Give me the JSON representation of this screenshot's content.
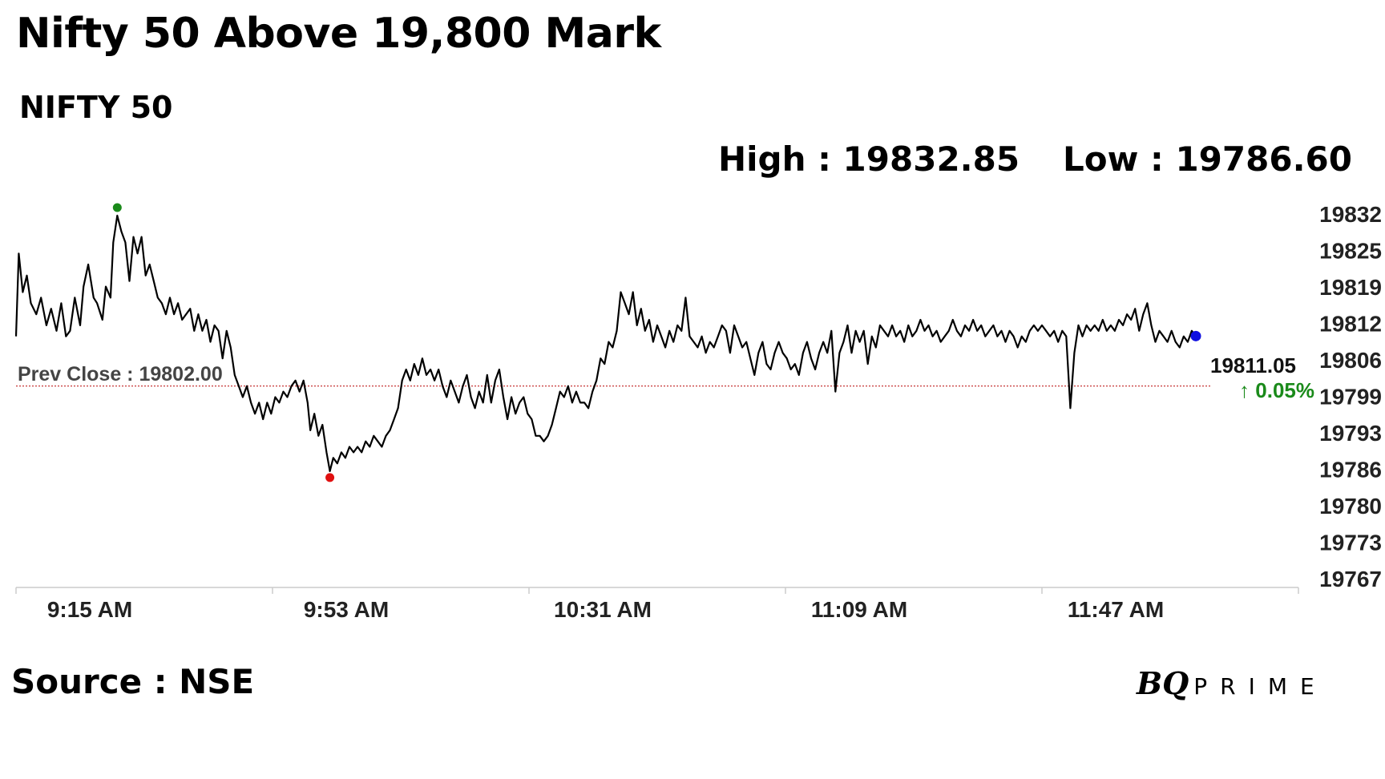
{
  "headline": "Nifty 50 Above 19,800 Mark",
  "index_name": "NIFTY 50",
  "stats": {
    "high": "High : 19832.85",
    "low": "Low : 19786.60"
  },
  "source": "Source : NSE",
  "brand": {
    "bq": "BQ",
    "prime": "PRIME"
  },
  "colors": {
    "line": "#000000",
    "high_marker": "#1a8a1a",
    "low_marker": "#e01010",
    "last_marker": "#1010e0",
    "prev_close_line": "#c02020",
    "change_positive": "#1a8a1a",
    "axis": "#cccccc",
    "prev_close_text": "#444444"
  },
  "chart_data": {
    "type": "line",
    "title": "NIFTY 50",
    "ylim": [
      19767,
      19833
    ],
    "y_ticks": [
      "19832",
      "19825",
      "19819",
      "19812",
      "19806",
      "19799",
      "19793",
      "19786",
      "19780",
      "19773",
      "19767"
    ],
    "x_ticks": [
      "9:15 AM",
      "9:53 AM",
      "10:31 AM",
      "11:09 AM",
      "11:47 AM"
    ],
    "x_tick_minutes": [
      0,
      38,
      76,
      114,
      152
    ],
    "x_range_minutes": [
      0,
      190
    ],
    "prev_close": {
      "value": 19802.0,
      "label": "Prev Close : 19802.00"
    },
    "last": {
      "value": 19811.05,
      "label": "19811.05",
      "change": "↑ 0.05%"
    },
    "high_point": {
      "t": 15,
      "value": 19832.85
    },
    "low_point": {
      "t": 46.5,
      "value": 19786.6
    },
    "grid": false,
    "series": [
      {
        "points": [
          [
            0,
            19811
          ],
          [
            0.4,
            19826
          ],
          [
            1,
            19819
          ],
          [
            1.6,
            19822
          ],
          [
            2.2,
            19817
          ],
          [
            3,
            19815
          ],
          [
            3.7,
            19818
          ],
          [
            4.5,
            19813
          ],
          [
            5.2,
            19816
          ],
          [
            6,
            19812
          ],
          [
            6.7,
            19817
          ],
          [
            7.4,
            19811
          ],
          [
            8,
            19812
          ],
          [
            8.7,
            19818
          ],
          [
            9.5,
            19813
          ],
          [
            10,
            19820
          ],
          [
            10.7,
            19824
          ],
          [
            11.5,
            19818
          ],
          [
            12,
            19817
          ],
          [
            12.8,
            19814
          ],
          [
            13.3,
            19820
          ],
          [
            14,
            19818
          ],
          [
            14.4,
            19828
          ],
          [
            15,
            19832.85
          ],
          [
            15.6,
            19830
          ],
          [
            16.2,
            19828
          ],
          [
            16.8,
            19821
          ],
          [
            17.4,
            19829
          ],
          [
            18,
            19826
          ],
          [
            18.6,
            19829
          ],
          [
            19.2,
            19822
          ],
          [
            19.8,
            19824
          ],
          [
            20.4,
            19821
          ],
          [
            21,
            19818
          ],
          [
            21.6,
            19817
          ],
          [
            22.2,
            19815
          ],
          [
            22.8,
            19818
          ],
          [
            23.4,
            19815
          ],
          [
            24,
            19817
          ],
          [
            24.6,
            19814
          ],
          [
            25.2,
            19815
          ],
          [
            25.8,
            19816
          ],
          [
            26.4,
            19812
          ],
          [
            27,
            19815
          ],
          [
            27.6,
            19812
          ],
          [
            28.2,
            19814
          ],
          [
            28.8,
            19810
          ],
          [
            29.4,
            19813
          ],
          [
            30,
            19812
          ],
          [
            30.6,
            19807
          ],
          [
            31.2,
            19812
          ],
          [
            31.8,
            19809
          ],
          [
            32.4,
            19804
          ],
          [
            33,
            19802
          ],
          [
            33.6,
            19800
          ],
          [
            34.2,
            19802
          ],
          [
            34.8,
            19799
          ],
          [
            35.4,
            19797
          ],
          [
            36,
            19799
          ],
          [
            36.6,
            19796
          ],
          [
            37.2,
            19799
          ],
          [
            37.8,
            19797
          ],
          [
            38.4,
            19800
          ],
          [
            39,
            19799
          ],
          [
            39.6,
            19801
          ],
          [
            40.2,
            19800
          ],
          [
            40.8,
            19802
          ],
          [
            41.4,
            19803
          ],
          [
            42,
            19801
          ],
          [
            42.6,
            19803
          ],
          [
            43.2,
            19799
          ],
          [
            43.6,
            19794
          ],
          [
            44.2,
            19797
          ],
          [
            44.8,
            19793
          ],
          [
            45.4,
            19795
          ],
          [
            46,
            19790
          ],
          [
            46.5,
            19786.6
          ],
          [
            47,
            19789
          ],
          [
            47.6,
            19788
          ],
          [
            48.2,
            19790
          ],
          [
            48.8,
            19789
          ],
          [
            49.4,
            19791
          ],
          [
            50,
            19790
          ],
          [
            50.6,
            19791
          ],
          [
            51.2,
            19790
          ],
          [
            51.8,
            19792
          ],
          [
            52.4,
            19791
          ],
          [
            53,
            19793
          ],
          [
            53.6,
            19792
          ],
          [
            54.2,
            19791
          ],
          [
            54.8,
            19793
          ],
          [
            55.4,
            19794
          ],
          [
            56,
            19796
          ],
          [
            56.6,
            19798
          ],
          [
            57.2,
            19803
          ],
          [
            57.8,
            19805
          ],
          [
            58.4,
            19803
          ],
          [
            59,
            19806
          ],
          [
            59.6,
            19804
          ],
          [
            60.2,
            19807
          ],
          [
            60.8,
            19804
          ],
          [
            61.4,
            19805
          ],
          [
            62,
            19803
          ],
          [
            62.6,
            19805
          ],
          [
            63.2,
            19802
          ],
          [
            63.8,
            19800
          ],
          [
            64.4,
            19803
          ],
          [
            65,
            19801
          ],
          [
            65.6,
            19799
          ],
          [
            66.2,
            19802
          ],
          [
            66.8,
            19804
          ],
          [
            67.4,
            19800
          ],
          [
            68,
            19798
          ],
          [
            68.6,
            19801
          ],
          [
            69.2,
            19799
          ],
          [
            69.8,
            19804
          ],
          [
            70.4,
            19799
          ],
          [
            71,
            19803
          ],
          [
            71.6,
            19805
          ],
          [
            72.2,
            19800
          ],
          [
            72.8,
            19796
          ],
          [
            73.4,
            19800
          ],
          [
            74,
            19797
          ],
          [
            74.6,
            19799
          ],
          [
            75.2,
            19800
          ],
          [
            75.8,
            19797
          ],
          [
            76.4,
            19796
          ],
          [
            77,
            19793
          ],
          [
            77.6,
            19793
          ],
          [
            78.2,
            19792
          ],
          [
            78.8,
            19793
          ],
          [
            79.4,
            19795
          ],
          [
            80,
            19798
          ],
          [
            80.6,
            19801
          ],
          [
            81.2,
            19800
          ],
          [
            81.8,
            19802
          ],
          [
            82.4,
            19799
          ],
          [
            83,
            19801
          ],
          [
            83.6,
            19799
          ],
          [
            84.2,
            19799
          ],
          [
            84.8,
            19798
          ],
          [
            85.4,
            19801
          ],
          [
            86,
            19803
          ],
          [
            86.6,
            19807
          ],
          [
            87.2,
            19806
          ],
          [
            87.8,
            19810
          ],
          [
            88.4,
            19809
          ],
          [
            89,
            19812
          ],
          [
            89.6,
            19819
          ],
          [
            90.2,
            19817
          ],
          [
            90.8,
            19815
          ],
          [
            91.4,
            19819
          ],
          [
            92,
            19813
          ],
          [
            92.6,
            19816
          ],
          [
            93.2,
            19812
          ],
          [
            93.8,
            19814
          ],
          [
            94.4,
            19810
          ],
          [
            95,
            19813
          ],
          [
            95.6,
            19811
          ],
          [
            96.2,
            19809
          ],
          [
            96.8,
            19812
          ],
          [
            97.4,
            19810
          ],
          [
            98,
            19813
          ],
          [
            98.6,
            19812
          ],
          [
            99.2,
            19818
          ],
          [
            99.8,
            19811
          ],
          [
            100.4,
            19810
          ],
          [
            101,
            19809
          ],
          [
            101.6,
            19811
          ],
          [
            102.2,
            19808
          ],
          [
            102.8,
            19810
          ],
          [
            103.4,
            19809
          ],
          [
            104,
            19811
          ],
          [
            104.6,
            19813
          ],
          [
            105.2,
            19812
          ],
          [
            105.8,
            19808
          ],
          [
            106.4,
            19813
          ],
          [
            107,
            19811
          ],
          [
            107.6,
            19809
          ],
          [
            108.2,
            19810
          ],
          [
            108.8,
            19807
          ],
          [
            109.4,
            19804
          ],
          [
            110,
            19808
          ],
          [
            110.6,
            19810
          ],
          [
            111.2,
            19806
          ],
          [
            111.8,
            19805
          ],
          [
            112.4,
            19808
          ],
          [
            113,
            19810
          ],
          [
            113.6,
            19808
          ],
          [
            114.2,
            19807
          ],
          [
            114.8,
            19805
          ],
          [
            115.4,
            19806
          ],
          [
            116,
            19804
          ],
          [
            116.6,
            19808
          ],
          [
            117.2,
            19810
          ],
          [
            117.8,
            19807
          ],
          [
            118.4,
            19805
          ],
          [
            119,
            19808
          ],
          [
            119.6,
            19810
          ],
          [
            120.2,
            19808
          ],
          [
            120.8,
            19812
          ],
          [
            121.4,
            19801
          ],
          [
            122,
            19808
          ],
          [
            122.6,
            19810
          ],
          [
            123.2,
            19813
          ],
          [
            123.8,
            19808
          ],
          [
            124.4,
            19812
          ],
          [
            125,
            19810
          ],
          [
            125.6,
            19812
          ],
          [
            126.2,
            19806
          ],
          [
            126.8,
            19811
          ],
          [
            127.4,
            19809
          ],
          [
            128,
            19813
          ],
          [
            128.6,
            19812
          ],
          [
            129.2,
            19811
          ],
          [
            129.8,
            19813
          ],
          [
            130.4,
            19811
          ],
          [
            131,
            19812
          ],
          [
            131.6,
            19810
          ],
          [
            132.2,
            19813
          ],
          [
            132.8,
            19811
          ],
          [
            133.4,
            19812
          ],
          [
            134,
            19814
          ],
          [
            134.6,
            19812
          ],
          [
            135.2,
            19813
          ],
          [
            135.8,
            19811
          ],
          [
            136.4,
            19812
          ],
          [
            137,
            19810
          ],
          [
            137.6,
            19811
          ],
          [
            138.2,
            19812
          ],
          [
            138.8,
            19814
          ],
          [
            139.4,
            19812
          ],
          [
            140,
            19811
          ],
          [
            140.6,
            19813
          ],
          [
            141.2,
            19812
          ],
          [
            141.8,
            19814
          ],
          [
            142.4,
            19812
          ],
          [
            143,
            19813
          ],
          [
            143.6,
            19811
          ],
          [
            144.2,
            19812
          ],
          [
            144.8,
            19813
          ],
          [
            145.4,
            19811
          ],
          [
            146,
            19812
          ],
          [
            146.6,
            19810
          ],
          [
            147.2,
            19812
          ],
          [
            147.8,
            19811
          ],
          [
            148.4,
            19809
          ],
          [
            149,
            19811
          ],
          [
            149.6,
            19810
          ],
          [
            150.2,
            19812
          ],
          [
            150.8,
            19813
          ],
          [
            151.4,
            19812
          ],
          [
            152,
            19813
          ],
          [
            152.6,
            19812
          ],
          [
            153.2,
            19811
          ],
          [
            153.8,
            19812
          ],
          [
            154.4,
            19810
          ],
          [
            155,
            19812
          ],
          [
            155.6,
            19811
          ],
          [
            156.2,
            19798
          ],
          [
            156.8,
            19808
          ],
          [
            157.4,
            19813
          ],
          [
            158,
            19811
          ],
          [
            158.6,
            19813
          ],
          [
            159.2,
            19812
          ],
          [
            159.8,
            19813
          ],
          [
            160.4,
            19812
          ],
          [
            161,
            19814
          ],
          [
            161.6,
            19812
          ],
          [
            162.2,
            19813
          ],
          [
            162.8,
            19812
          ],
          [
            163.4,
            19814
          ],
          [
            164,
            19813
          ],
          [
            164.6,
            19815
          ],
          [
            165.2,
            19814
          ],
          [
            165.8,
            19816
          ],
          [
            166.4,
            19812
          ],
          [
            167,
            19815
          ],
          [
            167.6,
            19817
          ],
          [
            168.2,
            19813
          ],
          [
            168.8,
            19810
          ],
          [
            169.4,
            19812
          ],
          [
            170,
            19811
          ],
          [
            170.6,
            19810
          ],
          [
            171.2,
            19812
          ],
          [
            171.8,
            19810
          ],
          [
            172.4,
            19809
          ],
          [
            173,
            19811
          ],
          [
            173.6,
            19810
          ],
          [
            174.2,
            19812
          ],
          [
            174.8,
            19811.05
          ]
        ]
      }
    ]
  }
}
